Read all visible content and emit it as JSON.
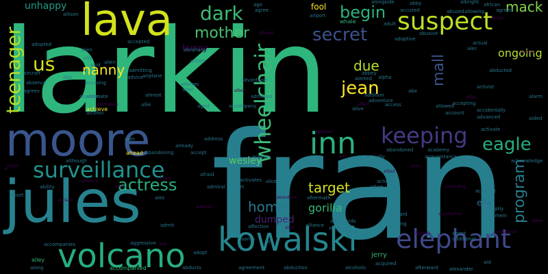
{
  "cloud": {
    "big": {
      "larkin": "larkin",
      "fran": "fran",
      "lava": "lava",
      "moore": "moore",
      "jules": "jules",
      "suspect": "suspect",
      "dark": "dark",
      "mother": "mother",
      "begin": "begin",
      "mack": "mack",
      "secret": "secret",
      "ongoing": "ongoing",
      "us": "us",
      "nanny": "nanny",
      "jean": "jean",
      "due": "due",
      "inn": "inn",
      "keeping": "keeping",
      "eagle": "eagle",
      "surveillance": "surveillance",
      "actress": "actress",
      "target": "target",
      "home": "home",
      "gorilla": "gorilla",
      "dumped": "dumped",
      "kowalski": "kowalski",
      "elephant": "elephant",
      "volcano": "volcano",
      "wesley": "wesley",
      "elia": "elia",
      "bunny": "bunny",
      "unhappy": "unhappy",
      "fool": "fool",
      "wheelchair": "wheelchair",
      "teenager": "teenager",
      "mall": "mall",
      "program": "program"
    },
    "small": {
      "w1": "allison",
      "w2": "adopted",
      "w3": "aircraft",
      "w4": "absence",
      "w5": "agrees",
      "w6": "alien",
      "w7": "ally",
      "w8": "accepted",
      "w9": "alien",
      "w10": "accusing",
      "w11": "abandon",
      "w12": "admitting",
      "w13": "airplane",
      "w14": "advice",
      "w15": "almost",
      "w16": "allie",
      "w17": "achieve",
      "w18": "alcohol",
      "w19": "ahead",
      "w20": "abandoning",
      "w21": "already",
      "w22": "address",
      "w23": "accept",
      "w24": "afraid",
      "w25": "admiral",
      "w26": "alert",
      "w27": "activates",
      "w28": "alice",
      "w29": "actor",
      "w30": "adam",
      "w31": "aftermath",
      "w32": "affection",
      "w33": "alliance",
      "w34": "afterwards",
      "w35": "accompanies",
      "w36": "aggressive",
      "w37": "alley",
      "w38": "along",
      "w39": "accompanied",
      "w40": "abducts",
      "w41": "agreement",
      "w42": "abduction",
      "w43": "alcoholic",
      "w44": "acquired",
      "w45": "afterward",
      "w46": "alexander",
      "w47": "aid",
      "w48": "additional",
      "w49": "agent",
      "w50": "accident",
      "w51": "abruptly",
      "w52": "alamein",
      "w53": "activist",
      "w54": "abducted",
      "w55": "accidentally",
      "w56": "advanced",
      "w57": "account",
      "w58": "allowed",
      "w59": "accepting",
      "w60": "actual",
      "w61": "alec",
      "w62": "abused",
      "w63": "allowing",
      "w64": "agreed",
      "w65": "albright",
      "w66": "african",
      "w67": "abby",
      "w68": "accused",
      "w69": "alongside",
      "w70": "airport",
      "w71": "whale",
      "w72": "adult",
      "w73": "adoptive",
      "w74": "abusive",
      "w75": "abbey",
      "w76": "alerted",
      "w77": "alpha",
      "w78": "addition",
      "w79": "adventure",
      "w80": "abe",
      "w81": "alive",
      "w82": "access",
      "w83": "actually",
      "w84": "afford",
      "w85": "abandoned",
      "w86": "academy",
      "w87": "acquaintance",
      "w88": "acknowledge",
      "w89": "activate",
      "w90": "aided",
      "w91": "alarm",
      "w92": "adopt",
      "w93": "aged",
      "w94": "accompany",
      "w95": "advantage",
      "w96": "advises",
      "w97": "aiter",
      "w98": "action",
      "w99": "abraham",
      "w100": "admit",
      "w101": "alan",
      "w102": "alternate",
      "w103": "aboard",
      "w104": "aging",
      "w105": "active",
      "w106": "jerry",
      "w107": "admitted",
      "w108": "agree",
      "w109": "age",
      "w110": "acid",
      "w111": "abu",
      "w112": "although",
      "w113": "ability",
      "w114": "abort",
      "w115": "accepts",
      "w116": "aaron",
      "w117": "air",
      "w118": "alex",
      "w119": "alternative",
      "w120": "affair",
      "w121": "affect",
      "w122": "ambits",
      "w123": "albert",
      "w124": "admiral",
      "w125": "advance",
      "w126": "acclaim",
      "w127": "alois",
      "w128": "according",
      "w129": "alibi",
      "w130": "accomplice",
      "w131": "alone",
      "w132": "alias",
      "w133": "altered",
      "w134": "alike",
      "w135": "aliens",
      "w136": "allied",
      "w137": "ai",
      "w138": "act",
      "w139": "abandons",
      "w140": "absent",
      "w141": "acceptance",
      "w142": "agenda",
      "w143": "agitated",
      "w144": "allows"
    }
  }
}
